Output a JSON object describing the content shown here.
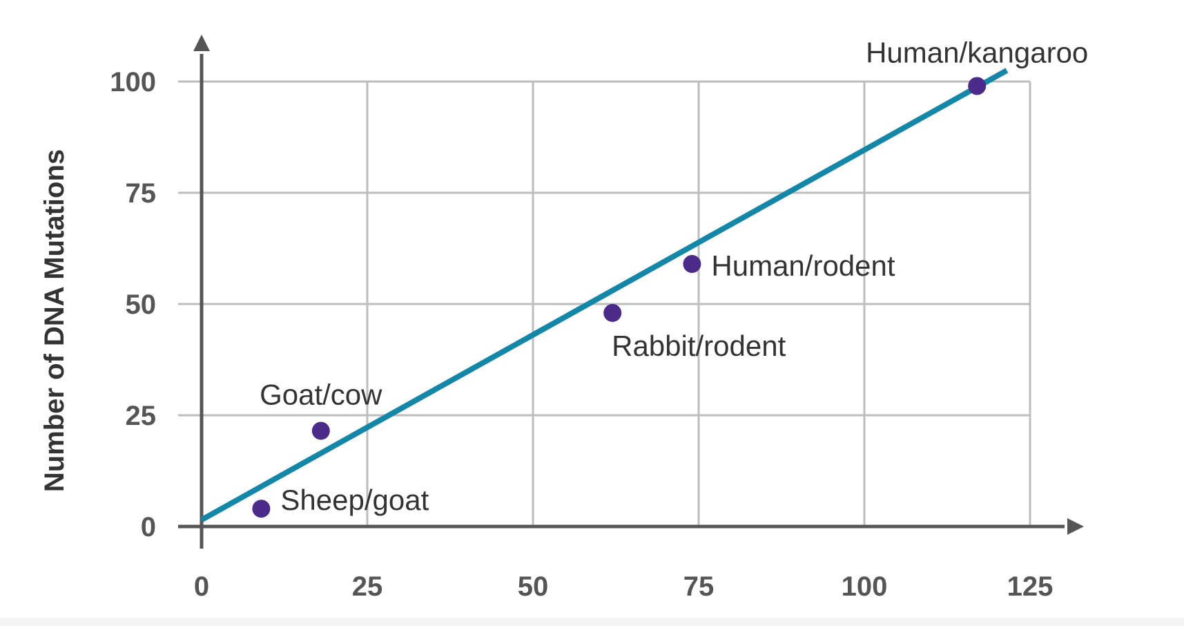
{
  "chart_data": {
    "type": "scatter",
    "title": "",
    "xlabel": "",
    "ylabel": "Number of DNA Mutations",
    "xlim": [
      0,
      125
    ],
    "ylim": [
      0,
      100
    ],
    "x_ticks": [
      0,
      25,
      50,
      75,
      100,
      125
    ],
    "y_ticks": [
      0,
      25,
      50,
      75,
      100
    ],
    "grid": true,
    "points": [
      {
        "label": "Sheep/goat",
        "x": 9,
        "y": 4
      },
      {
        "label": "Goat/cow",
        "x": 18,
        "y": 21.5
      },
      {
        "label": "Rabbit/rodent",
        "x": 62,
        "y": 48
      },
      {
        "label": "Human/rodent",
        "x": 74,
        "y": 59
      },
      {
        "label": "Human/kangaroo",
        "x": 117,
        "y": 99
      }
    ],
    "trendline": {
      "x": [
        0,
        121.5
      ],
      "y": [
        1.5,
        102.5
      ]
    },
    "colors": {
      "point": "#4b2a8a",
      "trendline": "#1487a8",
      "grid": "#bdbdbd",
      "axis": "#555555"
    }
  }
}
